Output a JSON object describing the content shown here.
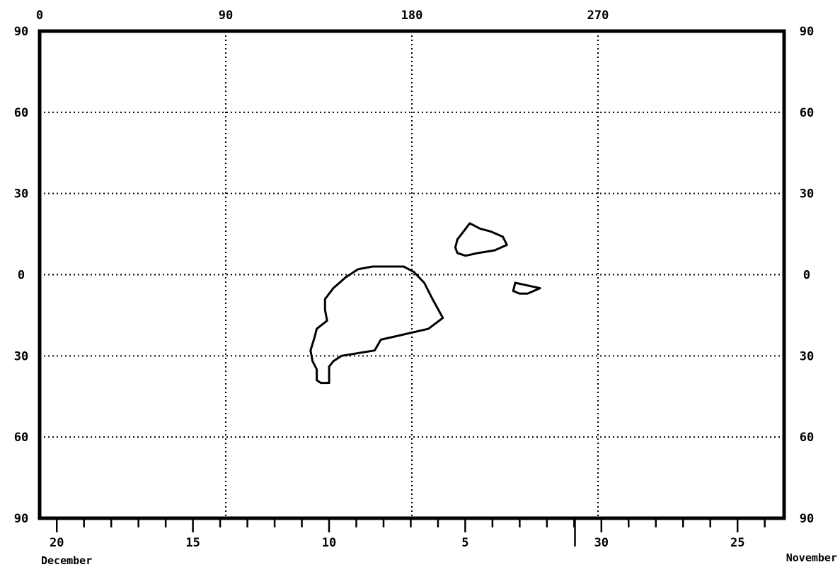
{
  "chart_data": {
    "type": "line",
    "title": "",
    "x_top": {
      "ticks": [
        "0",
        "90",
        "180",
        "270"
      ],
      "values": [
        0,
        90,
        180,
        270
      ],
      "range": [
        0,
        360
      ]
    },
    "y": {
      "ticks": [
        "90",
        "60",
        "30",
        "0",
        "30",
        "60",
        "90"
      ],
      "values": [
        90,
        60,
        30,
        0,
        -30,
        -60,
        -90
      ],
      "range": [
        -90,
        90
      ]
    },
    "x_bottom": {
      "ticks": [
        "20",
        "15",
        "10",
        "5",
        "30",
        "25"
      ],
      "values": [
        0,
        5,
        10,
        15,
        20,
        25
      ],
      "minor_step": 1,
      "range": [
        -0.63,
        26.71
      ],
      "month_labels": [
        "December",
        "November"
      ],
      "month_break": 19.03
    },
    "grid": true,
    "series": [
      {
        "values": [
          [
            161,
            3
          ],
          [
            176,
            3
          ],
          [
            181,
            1
          ],
          [
            186,
            -3
          ],
          [
            190,
            -9
          ],
          [
            195,
            -16
          ],
          [
            188,
            -20
          ],
          [
            171,
            -23
          ],
          [
            165,
            -24
          ],
          [
            162,
            -28
          ],
          [
            146,
            -30
          ],
          [
            142,
            -32
          ],
          [
            140,
            -34
          ],
          [
            140,
            -40
          ],
          [
            136,
            -40
          ],
          [
            134,
            -39
          ],
          [
            134,
            -35
          ],
          [
            132,
            -32
          ],
          [
            131,
            -28
          ],
          [
            133,
            -23
          ],
          [
            134,
            -20
          ],
          [
            139,
            -17
          ],
          [
            138,
            -13
          ],
          [
            138,
            -9
          ],
          [
            142,
            -5
          ],
          [
            148,
            -1
          ],
          [
            154,
            2
          ],
          [
            161,
            3
          ]
        ]
      },
      {
        "values": [
          [
            208,
            19
          ],
          [
            213,
            17
          ],
          [
            218,
            16
          ],
          [
            224,
            14
          ],
          [
            226,
            11
          ],
          [
            220,
            9
          ],
          [
            212,
            8
          ],
          [
            206,
            7
          ],
          [
            202,
            8
          ],
          [
            201,
            10
          ],
          [
            202,
            13
          ],
          [
            205,
            16
          ],
          [
            208,
            19
          ]
        ]
      },
      {
        "values": [
          [
            230,
            -3
          ],
          [
            236,
            -4
          ],
          [
            242,
            -5
          ],
          [
            236,
            -7
          ],
          [
            232,
            -7
          ],
          [
            229,
            -6
          ],
          [
            230,
            -3
          ]
        ]
      }
    ]
  }
}
